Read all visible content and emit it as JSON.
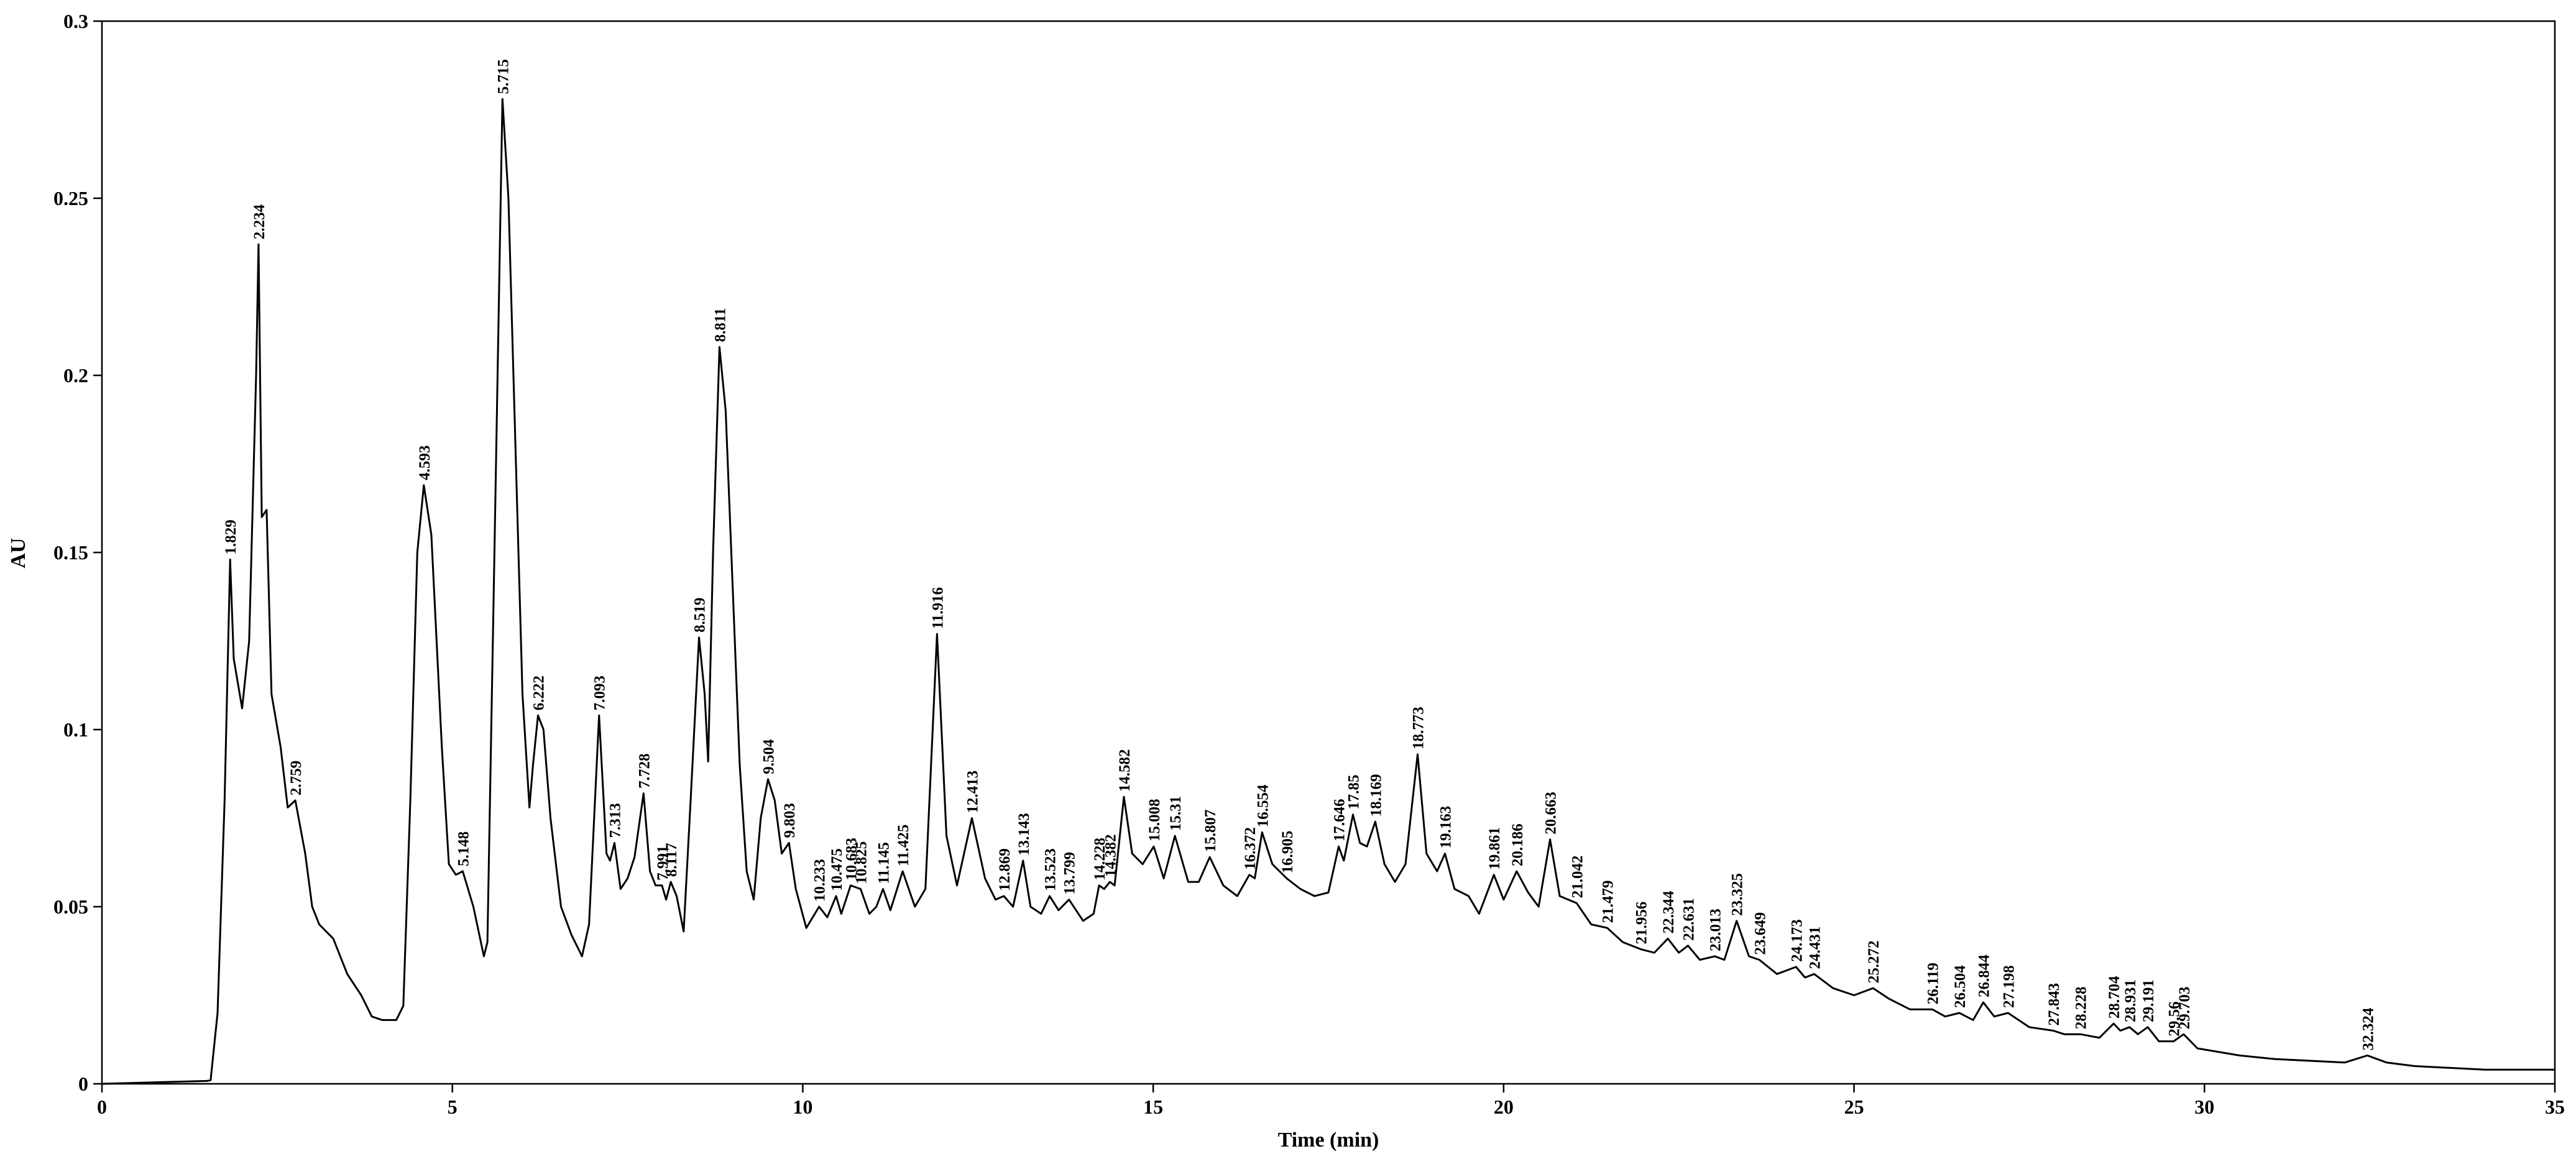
{
  "chart_data": {
    "type": "line",
    "color": "#000000",
    "x_label": "Time (min)",
    "y_label": "AU",
    "xlim": [
      0,
      35
    ],
    "xticks": [
      0,
      5,
      10,
      15,
      20,
      25,
      30,
      35
    ],
    "ylim": [
      0,
      0.3
    ],
    "yticks": [
      0,
      0.05,
      0.1,
      0.15,
      0.2,
      0.25,
      0.3
    ],
    "x": [
      0,
      1.5,
      1.55,
      1.65,
      1.75,
      1.829,
      1.88,
      2.0,
      2.1,
      2.2,
      2.234,
      2.28,
      2.35,
      2.42,
      2.55,
      2.65,
      2.759,
      2.9,
      3.0,
      3.1,
      3.3,
      3.5,
      3.7,
      3.85,
      4.0,
      4.2,
      4.3,
      4.4,
      4.5,
      4.593,
      4.7,
      4.85,
      4.95,
      5.05,
      5.148,
      5.3,
      5.45,
      5.5,
      5.6,
      5.715,
      5.8,
      5.9,
      6.0,
      6.1,
      6.15,
      6.222,
      6.3,
      6.4,
      6.55,
      6.7,
      6.85,
      6.95,
      7.093,
      7.2,
      7.25,
      7.313,
      7.4,
      7.5,
      7.6,
      7.728,
      7.82,
      7.9,
      7.991,
      8.05,
      8.117,
      8.2,
      8.3,
      8.4,
      8.519,
      8.6,
      8.65,
      8.72,
      8.811,
      8.9,
      9.0,
      9.1,
      9.2,
      9.3,
      9.4,
      9.504,
      9.6,
      9.7,
      9.803,
      9.9,
      10.05,
      10.233,
      10.35,
      10.475,
      10.55,
      10.683,
      10.825,
      10.95,
      11.05,
      11.145,
      11.25,
      11.425,
      11.6,
      11.75,
      11.916,
      12.05,
      12.2,
      12.413,
      12.6,
      12.75,
      12.869,
      13.0,
      13.143,
      13.25,
      13.4,
      13.523,
      13.65,
      13.799,
      14.0,
      14.15,
      14.228,
      14.3,
      14.382,
      14.45,
      14.582,
      14.7,
      14.85,
      15.008,
      15.15,
      15.31,
      15.5,
      15.65,
      15.807,
      16.0,
      16.2,
      16.372,
      16.45,
      16.554,
      16.7,
      16.905,
      17.1,
      17.3,
      17.5,
      17.646,
      17.72,
      17.85,
      17.95,
      18.05,
      18.169,
      18.3,
      18.45,
      18.6,
      18.773,
      18.9,
      19.05,
      19.163,
      19.3,
      19.5,
      19.65,
      19.861,
      20.0,
      20.186,
      20.35,
      20.5,
      20.663,
      20.8,
      21.042,
      21.25,
      21.479,
      21.7,
      21.956,
      22.15,
      22.344,
      22.5,
      22.631,
      22.8,
      23.013,
      23.15,
      23.325,
      23.5,
      23.649,
      23.9,
      24.173,
      24.3,
      24.431,
      24.7,
      25.0,
      25.272,
      25.5,
      25.8,
      26.119,
      26.3,
      26.504,
      26.7,
      26.844,
      27.0,
      27.198,
      27.5,
      27.843,
      28.0,
      28.228,
      28.5,
      28.704,
      28.8,
      28.931,
      29.05,
      29.191,
      29.35,
      29.56,
      29.703,
      29.9,
      30.5,
      31,
      32,
      32.324,
      32.6,
      33,
      34,
      35
    ],
    "values": [
      0,
      0.0008,
      0.001,
      0.02,
      0.08,
      0.148,
      0.12,
      0.106,
      0.125,
      0.2,
      0.237,
      0.16,
      0.162,
      0.11,
      0.095,
      0.078,
      0.08,
      0.065,
      0.05,
      0.045,
      0.041,
      0.031,
      0.025,
      0.019,
      0.018,
      0.018,
      0.022,
      0.08,
      0.15,
      0.169,
      0.155,
      0.095,
      0.062,
      0.059,
      0.06,
      0.05,
      0.036,
      0.04,
      0.15,
      0.278,
      0.25,
      0.18,
      0.11,
      0.078,
      0.09,
      0.104,
      0.1,
      0.075,
      0.05,
      0.042,
      0.036,
      0.045,
      0.104,
      0.065,
      0.063,
      0.068,
      0.055,
      0.058,
      0.064,
      0.082,
      0.06,
      0.056,
      0.056,
      0.052,
      0.057,
      0.053,
      0.043,
      0.08,
      0.126,
      0.11,
      0.091,
      0.15,
      0.208,
      0.19,
      0.14,
      0.09,
      0.06,
      0.052,
      0.075,
      0.086,
      0.08,
      0.065,
      0.068,
      0.055,
      0.044,
      0.05,
      0.047,
      0.053,
      0.048,
      0.056,
      0.055,
      0.048,
      0.05,
      0.055,
      0.049,
      0.06,
      0.05,
      0.055,
      0.127,
      0.07,
      0.056,
      0.075,
      0.058,
      0.052,
      0.053,
      0.05,
      0.063,
      0.05,
      0.048,
      0.053,
      0.049,
      0.052,
      0.046,
      0.048,
      0.056,
      0.055,
      0.057,
      0.056,
      0.081,
      0.065,
      0.062,
      0.067,
      0.058,
      0.07,
      0.057,
      0.057,
      0.064,
      0.056,
      0.053,
      0.059,
      0.058,
      0.071,
      0.062,
      0.058,
      0.055,
      0.053,
      0.054,
      0.067,
      0.063,
      0.076,
      0.068,
      0.067,
      0.074,
      0.062,
      0.057,
      0.062,
      0.093,
      0.065,
      0.06,
      0.065,
      0.055,
      0.053,
      0.048,
      0.059,
      0.052,
      0.06,
      0.054,
      0.05,
      0.069,
      0.053,
      0.051,
      0.045,
      0.044,
      0.04,
      0.038,
      0.037,
      0.041,
      0.037,
      0.039,
      0.035,
      0.036,
      0.035,
      0.046,
      0.036,
      0.035,
      0.031,
      0.033,
      0.03,
      0.031,
      0.027,
      0.025,
      0.027,
      0.024,
      0.021,
      0.021,
      0.019,
      0.02,
      0.018,
      0.023,
      0.019,
      0.02,
      0.016,
      0.015,
      0.014,
      0.014,
      0.013,
      0.017,
      0.015,
      0.016,
      0.014,
      0.016,
      0.012,
      0.012,
      0.014,
      0.01,
      0.008,
      0.007,
      0.006,
      0.008,
      0.006,
      0.005,
      0.004,
      0.004
    ],
    "peak_labels": [
      1.829,
      2.234,
      2.759,
      4.593,
      5.148,
      5.715,
      6.222,
      7.093,
      7.313,
      7.728,
      7.991,
      8.117,
      8.519,
      8.811,
      9.504,
      9.803,
      10.233,
      10.475,
      10.683,
      10.825,
      11.145,
      11.425,
      11.916,
      12.413,
      12.869,
      13.143,
      13.523,
      13.799,
      14.228,
      14.382,
      14.582,
      15.008,
      15.31,
      15.807,
      16.372,
      16.554,
      16.905,
      17.646,
      17.85,
      18.169,
      18.773,
      19.163,
      19.861,
      20.186,
      20.663,
      21.042,
      21.479,
      21.956,
      22.344,
      22.631,
      23.013,
      23.325,
      23.649,
      24.173,
      24.431,
      25.272,
      26.119,
      26.504,
      26.844,
      27.198,
      27.843,
      28.228,
      28.704,
      28.931,
      29.191,
      29.56,
      29.703,
      32.324
    ]
  }
}
